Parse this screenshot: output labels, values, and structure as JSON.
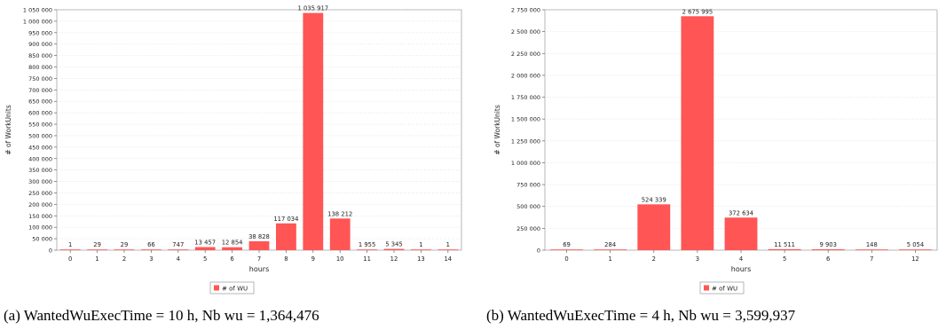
{
  "chart_data": [
    {
      "type": "bar",
      "caption": "(a)  WantedWuExecTime = 10 h, Nb wu = 1,364,476",
      "xlabel": "hours",
      "ylabel": "# of WorkUnits",
      "legend": [
        "# of WU"
      ],
      "legend_position": "bottom-center",
      "grid": true,
      "bar_color": "#ff5555",
      "categories": [
        "0",
        "1",
        "2",
        "3",
        "4",
        "5",
        "6",
        "7",
        "8",
        "9",
        "10",
        "11",
        "12",
        "13",
        "14"
      ],
      "values": [
        1,
        29,
        29,
        66,
        747,
        13457,
        12854,
        38828,
        117034,
        1035917,
        138212,
        1955,
        5345,
        1,
        1
      ],
      "value_labels": [
        "1",
        "29",
        "29",
        "66",
        "747",
        "13 457",
        "12 854",
        "38 828",
        "117 034",
        "1 035 917",
        "138 212",
        "1 955",
        "5 345",
        "1",
        "1"
      ],
      "ylim": [
        0,
        1050000
      ],
      "yticks": [
        0,
        50000,
        100000,
        150000,
        200000,
        250000,
        300000,
        350000,
        400000,
        450000,
        500000,
        550000,
        600000,
        650000,
        700000,
        750000,
        800000,
        850000,
        900000,
        950000,
        1000000,
        1050000
      ],
      "ytick_labels": [
        "0",
        "50 000",
        "100 000",
        "150 000",
        "200 000",
        "250 000",
        "300 000",
        "350 000",
        "400 000",
        "450 000",
        "500 000",
        "550 000",
        "600 000",
        "650 000",
        "700 000",
        "750 000",
        "800 000",
        "850 000",
        "900 000",
        "950 000",
        "1 000 000",
        "1 050 000"
      ]
    },
    {
      "type": "bar",
      "caption": "(b)  WantedWuExecTime = 4 h, Nb wu = 3,599,937",
      "xlabel": "hours",
      "ylabel": "# of WorkUnits",
      "legend": [
        "# of WU"
      ],
      "legend_position": "bottom-center",
      "grid": true,
      "bar_color": "#ff5555",
      "categories": [
        "0",
        "1",
        "2",
        "3",
        "4",
        "5",
        "6",
        "7",
        "12"
      ],
      "values": [
        69,
        284,
        524339,
        2675995,
        372634,
        11511,
        9903,
        148,
        5054
      ],
      "value_labels": [
        "69",
        "284",
        "524 339",
        "2 675 995",
        "372 634",
        "11 511",
        "9 903",
        "148",
        "5 054"
      ],
      "ylim": [
        0,
        2750000
      ],
      "yticks": [
        0,
        250000,
        500000,
        750000,
        1000000,
        1250000,
        1500000,
        1750000,
        2000000,
        2250000,
        2500000,
        2750000
      ],
      "ytick_labels": [
        "0",
        "250 000",
        "500 000",
        "750 000",
        "1 000 000",
        "1 250 000",
        "1 500 000",
        "1 750 000",
        "2 000 000",
        "2 250 000",
        "2 500 000",
        "2 750 000"
      ]
    }
  ]
}
